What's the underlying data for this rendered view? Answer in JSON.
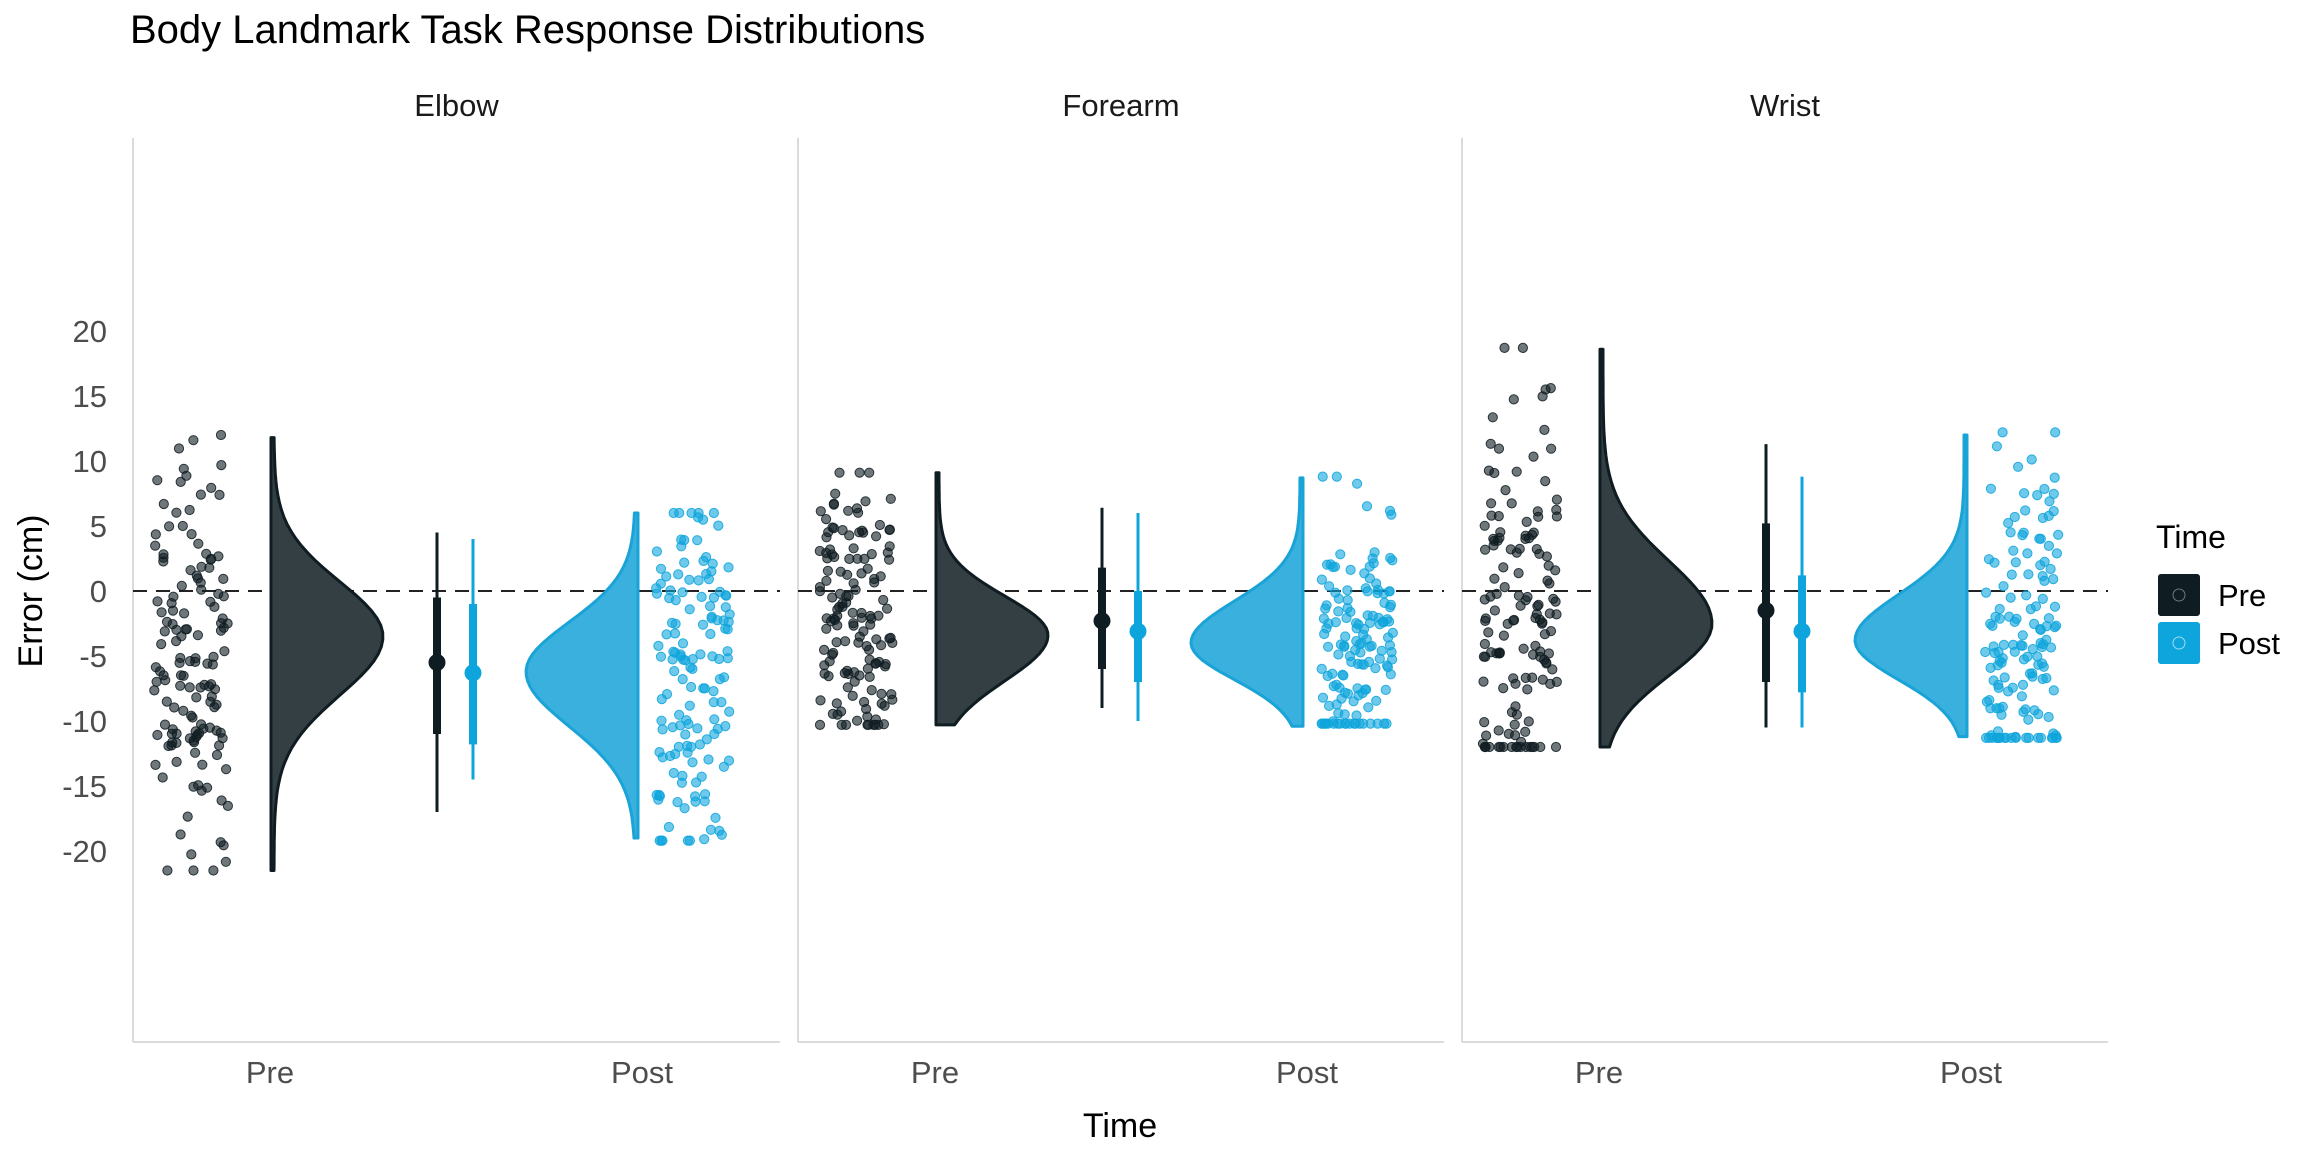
{
  "chart_data": {
    "type": "raincloud",
    "title": "Body Landmark Task Response Distributions",
    "xlabel": "Time",
    "ylabel": "Error (cm)",
    "ylim": [
      -35,
      35
    ],
    "yticks": [
      -20,
      -15,
      -10,
      -5,
      0,
      5,
      10,
      15,
      20
    ],
    "reference_line": 0,
    "categories": [
      "Pre",
      "Post"
    ],
    "legend": {
      "title": "Time",
      "position": "right",
      "entries": [
        {
          "label": "Pre",
          "color": "#0f1c22"
        },
        {
          "label": "Post",
          "color": "#0ea5dc"
        }
      ]
    },
    "colors": {
      "Pre": "#0f1c22",
      "Post": "#0ea5dc",
      "pre_fill": "#333f42",
      "post_fill": "#3ab0de"
    },
    "facets": [
      {
        "name": "Elbow",
        "series": [
          {
            "name": "Pre",
            "n": 140,
            "mean": -5.5,
            "q25": -11,
            "q75": -0.5,
            "min": -17,
            "max": 4.5,
            "points_min": -21.5,
            "points_max": 12,
            "density": {
              "min": -21.5,
              "max": 11.8,
              "mode": -3.5,
              "sd_low": 4.5,
              "sd_high": 4.2
            }
          },
          {
            "name": "Post",
            "n": 140,
            "mean": -6.3,
            "q25": -11.8,
            "q75": -1,
            "min": -14.5,
            "max": 4,
            "points_min": -19.2,
            "points_max": 6,
            "density": {
              "min": -19,
              "max": 6,
              "mode": -6.2,
              "sd_low": 4.2,
              "sd_high": 3.8
            }
          }
        ]
      },
      {
        "name": "Forearm",
        "series": [
          {
            "name": "Pre",
            "n": 140,
            "mean": -2.3,
            "q25": -6,
            "q75": 1.8,
            "min": -9,
            "max": 6.4,
            "points_min": -10.3,
            "points_max": 9.1,
            "density": {
              "min": -10.3,
              "max": 9.1,
              "mode": -3.4,
              "sd_low": 3.5,
              "sd_high": 3.0
            }
          },
          {
            "name": "Post",
            "n": 140,
            "mean": -3.1,
            "q25": -7,
            "q75": 0,
            "min": -10,
            "max": 6,
            "points_min": -10.2,
            "points_max": 8.8,
            "density": {
              "min": -10.4,
              "max": 8.7,
              "mode": -4,
              "sd_low": 2.8,
              "sd_high": 3.2
            }
          }
        ]
      },
      {
        "name": "Wrist",
        "series": [
          {
            "name": "Pre",
            "n": 140,
            "mean": -1.5,
            "q25": -7,
            "q75": 5.2,
            "min": -10.5,
            "max": 11.3,
            "points_min": -12,
            "points_max": 18.7,
            "density": {
              "min": -12,
              "max": 18.6,
              "mode": -2.5,
              "sd_low": 4.0,
              "sd_high": 4.8
            }
          },
          {
            "name": "Post",
            "n": 140,
            "mean": -3.1,
            "q25": -7.8,
            "q75": 1.2,
            "min": -10.5,
            "max": 8.8,
            "points_min": -11.3,
            "points_max": 12.2,
            "density": {
              "min": -11.2,
              "max": 12,
              "mode": -3.8,
              "sd_low": 3.0,
              "sd_high": 3.5
            }
          }
        ]
      }
    ]
  }
}
